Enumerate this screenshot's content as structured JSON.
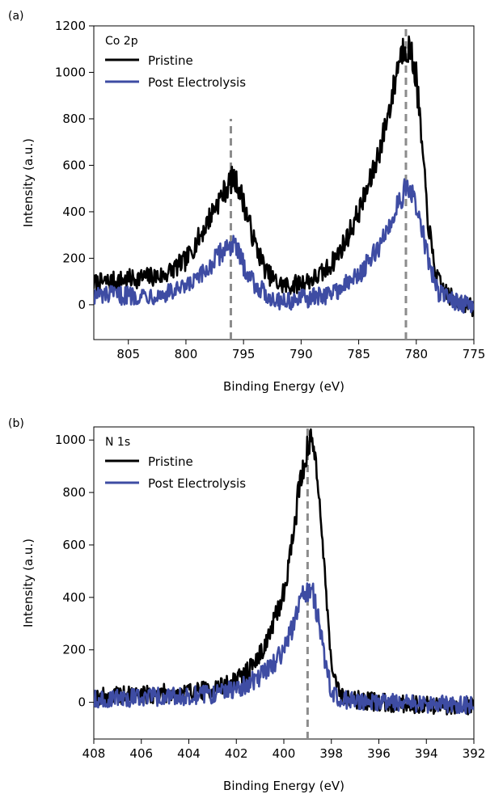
{
  "chart_data": [
    {
      "panel_label": "(a)",
      "type": "line",
      "annotation": "Co 2p",
      "xlabel": "Binding Energy (eV)",
      "ylabel": "Intensity (a.u.)",
      "xlim": [
        808,
        775
      ],
      "ylim": [
        -150,
        1200
      ],
      "x_reversed": true,
      "xticks": [
        805,
        800,
        795,
        790,
        785,
        780,
        775
      ],
      "yticks": [
        0,
        200,
        400,
        600,
        800,
        1000,
        1200
      ],
      "legend_position": "top-left",
      "noise_amplitude": 40,
      "reference_lines": [
        {
          "x": 796.1,
          "y_top": 800,
          "color": "#8c8c8c",
          "style": "dashed"
        },
        {
          "x": 780.9,
          "y_top": 1200,
          "color": "#8c8c8c",
          "style": "dashed"
        }
      ],
      "series": [
        {
          "name": "Pristine",
          "color": "#000000",
          "x": [
            808,
            805,
            802,
            800,
            798.5,
            797.5,
            796.5,
            796,
            795.5,
            795,
            794,
            793,
            792,
            791,
            790,
            789,
            788,
            787,
            786,
            785,
            784,
            783,
            782,
            781.5,
            781,
            780.5,
            780,
            779.5,
            779,
            778.5,
            778,
            777,
            776,
            775
          ],
          "y": [
            90,
            110,
            125,
            190,
            320,
            420,
            500,
            540,
            520,
            440,
            260,
            140,
            90,
            80,
            95,
            110,
            140,
            200,
            290,
            400,
            530,
            700,
            920,
            1060,
            1120,
            1090,
            980,
            680,
            370,
            180,
            90,
            30,
            10,
            -20
          ]
        },
        {
          "name": "Post Electrolysis",
          "color": "#3e4ca3",
          "x": [
            808,
            805,
            802,
            800,
            798.5,
            797.5,
            796.5,
            796,
            795.5,
            795,
            794,
            793,
            792,
            791,
            790,
            789,
            788,
            787,
            786,
            785,
            784,
            783,
            782,
            781.5,
            781,
            780.5,
            780,
            779.5,
            779,
            778.5,
            778,
            777,
            776,
            775
          ],
          "y": [
            40,
            40,
            45,
            70,
            130,
            190,
            250,
            260,
            230,
            170,
            90,
            40,
            20,
            15,
            25,
            30,
            40,
            60,
            90,
            130,
            190,
            270,
            380,
            450,
            490,
            480,
            430,
            320,
            200,
            110,
            50,
            25,
            5,
            -10
          ]
        }
      ]
    },
    {
      "panel_label": "(b)",
      "type": "line",
      "annotation": "N 1s",
      "xlabel": "Binding Energy (eV)",
      "ylabel": "Intensity (a.u.)",
      "xlim": [
        408,
        392
      ],
      "ylim": [
        -140,
        1050
      ],
      "x_reversed": true,
      "xticks": [
        408,
        406,
        404,
        402,
        400,
        398,
        396,
        394,
        392
      ],
      "yticks": [
        0,
        200,
        400,
        600,
        800,
        1000
      ],
      "legend_position": "top-left",
      "noise_amplitude": 35,
      "reference_lines": [
        {
          "x": 399.0,
          "y_top": 1050,
          "color": "#8c8c8c",
          "style": "dashed"
        }
      ],
      "series": [
        {
          "name": "Pristine",
          "color": "#000000",
          "x": [
            408,
            406,
            404,
            403,
            402,
            401.5,
            401,
            400.5,
            400,
            399.6,
            399.3,
            399,
            398.8,
            398.6,
            398.4,
            398.2,
            398,
            397.8,
            397.5,
            397,
            396,
            395,
            394,
            393,
            392
          ],
          "y": [
            20,
            30,
            40,
            50,
            80,
            120,
            180,
            280,
            420,
            640,
            860,
            960,
            1000,
            900,
            650,
            380,
            170,
            60,
            20,
            10,
            0,
            -5,
            -10,
            -15,
            -10
          ]
        },
        {
          "name": "Post Electrolysis",
          "color": "#3e4ca3",
          "x": [
            408,
            406,
            404,
            403,
            402,
            401.5,
            401,
            400.5,
            400,
            399.6,
            399.3,
            399,
            398.8,
            398.6,
            398.4,
            398.2,
            398,
            397.8,
            397.5,
            397,
            396,
            395,
            394,
            393,
            392
          ],
          "y": [
            10,
            20,
            25,
            30,
            50,
            70,
            100,
            140,
            200,
            290,
            390,
            430,
            420,
            340,
            230,
            120,
            50,
            20,
            10,
            5,
            0,
            -5,
            -10,
            -5,
            -10
          ]
        }
      ]
    }
  ]
}
